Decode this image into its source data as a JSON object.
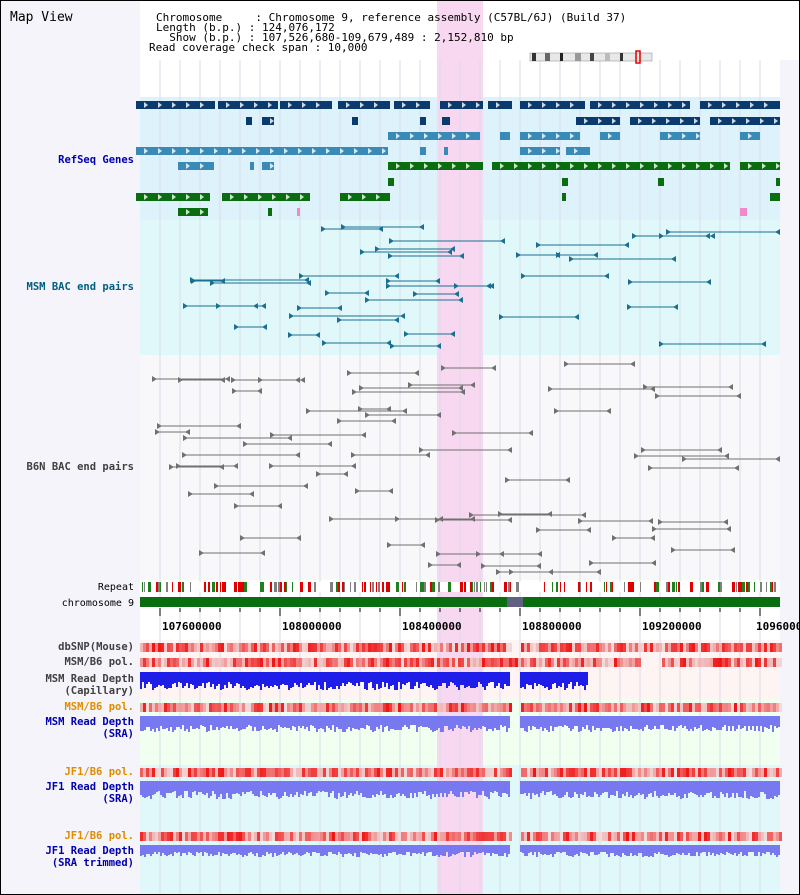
{
  "view_title": "Map View",
  "header": {
    "chromosome_line": "Chromosome     : Chromosome 9, reference assembly (C57BL/6J) (Build 37)",
    "length_line": "Length (b.p.) : 124,076,172",
    "show_line": "  Show (b.p.) : 107,526,680-109,679,489 : 2,152,810 bp",
    "coverage_line": "Read coverage check span : 10,000"
  },
  "tracks": {
    "refseq": "RefSeq Genes",
    "msm_bac": "MSM BAC end pairs",
    "b6n_bac": "B6N BAC end pairs",
    "repeat": "Repeat",
    "chromosome": "chromosome 9",
    "dbsnp": "dbSNP(Mouse)",
    "msm_b6_pol": "MSM/B6 pol.",
    "msm_read_depth_cap_1": "MSM Read Depth",
    "msm_read_depth_cap_2": "(Capillary)",
    "msm_b6_pol_2": "MSM/B6 pol.",
    "msm_read_depth_sra_1": "MSM Read Depth",
    "msm_read_depth_sra_2": "(SRA)",
    "jf1_b6_pol": "JF1/B6 pol.",
    "jf1_read_depth_sra_1": "JF1 Read Depth",
    "jf1_read_depth_sra_2": "(SRA)",
    "jf1_b6_pol_2": "JF1/B6 pol.",
    "jf1_read_depth_trim_1": "JF1 Read Depth",
    "jf1_read_depth_trim_2": "(SRA trimmed)"
  },
  "axis": {
    "ticks": [
      "107600000",
      "108000000",
      "108400000",
      "108800000",
      "109200000",
      "1096000"
    ]
  },
  "colors": {
    "refseq_dark": "#0a3a6e",
    "refseq_mid": "#3a8ab8",
    "refseq_green": "#0a6e10",
    "highlight": "#f8d8f0",
    "msm_bg": "#e0f8fa",
    "snp_bg": "#f0fff0",
    "depth_blue": "#1e1ee8",
    "depth_light": "#7878f0"
  }
}
